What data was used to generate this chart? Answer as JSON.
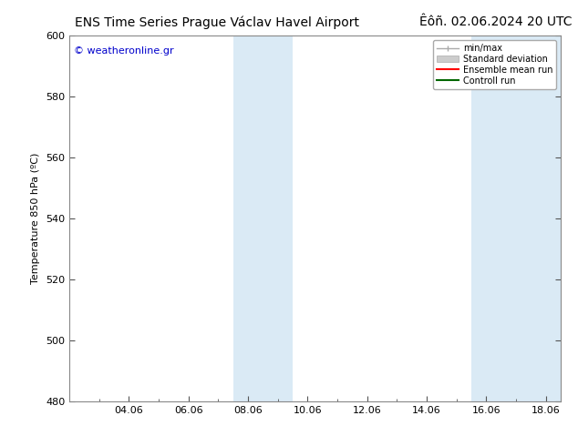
{
  "title_left": "ENS Time Series Prague Václav Havel Airport",
  "title_right": "Êôñ. 02.06.2024 20 UTC",
  "ylabel": "Temperature 850 hPa (ºC)",
  "ylim": [
    480,
    600
  ],
  "yticks": [
    480,
    500,
    520,
    540,
    560,
    580,
    600
  ],
  "xtick_labels": [
    "04.06",
    "06.06",
    "08.06",
    "10.06",
    "12.06",
    "14.06",
    "16.06",
    "18.06"
  ],
  "xtick_positions": [
    2,
    4,
    6,
    8,
    10,
    12,
    14,
    16
  ],
  "xlim": [
    0,
    16.5
  ],
  "shaded_bands": [
    {
      "xstart": 5.5,
      "xend": 7.5
    },
    {
      "xstart": 13.5,
      "xend": 16.5
    }
  ],
  "shaded_color": "#daeaf5",
  "background_color": "#ffffff",
  "border_color": "#888888",
  "watermark_text": "© weatheronline.gr",
  "watermark_color": "#0000cc",
  "legend_entries": [
    {
      "label": "min/max",
      "color": "#aaaaaa"
    },
    {
      "label": "Standard deviation",
      "color": "#cccccc"
    },
    {
      "label": "Ensemble mean run",
      "color": "#ff0000"
    },
    {
      "label": "Controll run",
      "color": "#006600"
    }
  ],
  "title_fontsize": 10,
  "axis_fontsize": 8,
  "tick_fontsize": 8,
  "watermark_fontsize": 8,
  "tick_color": "#555555"
}
